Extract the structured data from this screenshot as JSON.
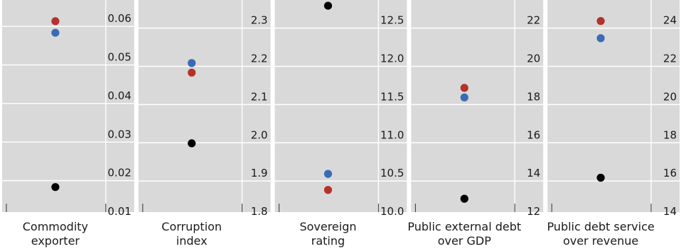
{
  "chart_data": {
    "type": "scatter",
    "grid": true,
    "colors": {
      "red": "#b5322b",
      "blue": "#3a6bb4",
      "black": "#000000",
      "panel_bg": "#d9d9d9",
      "grid": "#ffffff"
    },
    "panels": [
      {
        "category_lines": [
          "Commodity",
          "exporter"
        ],
        "ticks": [
          "0.06",
          "0.05",
          "0.04",
          "0.03",
          "0.02",
          "0.01"
        ],
        "tick_values": [
          0.06,
          0.05,
          0.04,
          0.03,
          0.02,
          0.01
        ],
        "ylim": [
          0.01,
          0.065
        ],
        "points": {
          "red": 0.0595,
          "blue": 0.0565,
          "black": 0.0165
        }
      },
      {
        "category_lines": [
          "Corruption",
          "index"
        ],
        "ticks": [
          "2.3",
          "2.2",
          "2.1",
          "2.0",
          "1.9",
          "1.8"
        ],
        "tick_values": [
          2.3,
          2.2,
          2.1,
          2.0,
          1.9,
          1.8
        ],
        "ylim": [
          1.8,
          2.355
        ],
        "points": {
          "red": 2.165,
          "blue": 2.19,
          "black": 1.98
        }
      },
      {
        "category_lines": [
          "Sovereign",
          "rating"
        ],
        "ticks": [
          "12.5",
          "12.0",
          "11.5",
          "11.0",
          "10.5",
          "10.0"
        ],
        "tick_values": [
          12.5,
          12.0,
          11.5,
          11.0,
          10.5,
          10.0
        ],
        "ylim": [
          10.0,
          12.775
        ],
        "points": {
          "red": 10.29,
          "blue": 10.5,
          "black": 12.7
        }
      },
      {
        "category_lines": [
          "Public external debt",
          "over GDP"
        ],
        "ticks": [
          "22",
          "20",
          "18",
          "16",
          "14",
          "12"
        ],
        "tick_values": [
          22,
          20,
          18,
          16,
          14,
          12
        ],
        "ylim": [
          12,
          23.1
        ],
        "points": {
          "red": 18.5,
          "blue": 18.0,
          "black": 12.7
        }
      },
      {
        "category_lines": [
          "Public debt service",
          "over revenue"
        ],
        "ticks": [
          "24",
          "22",
          "20",
          "18",
          "16",
          "14"
        ],
        "tick_values": [
          24,
          22,
          20,
          18,
          16,
          14
        ],
        "ylim": [
          14,
          25.1
        ],
        "points": {
          "red": 24.0,
          "blue": 23.1,
          "black": 15.8
        }
      }
    ]
  }
}
